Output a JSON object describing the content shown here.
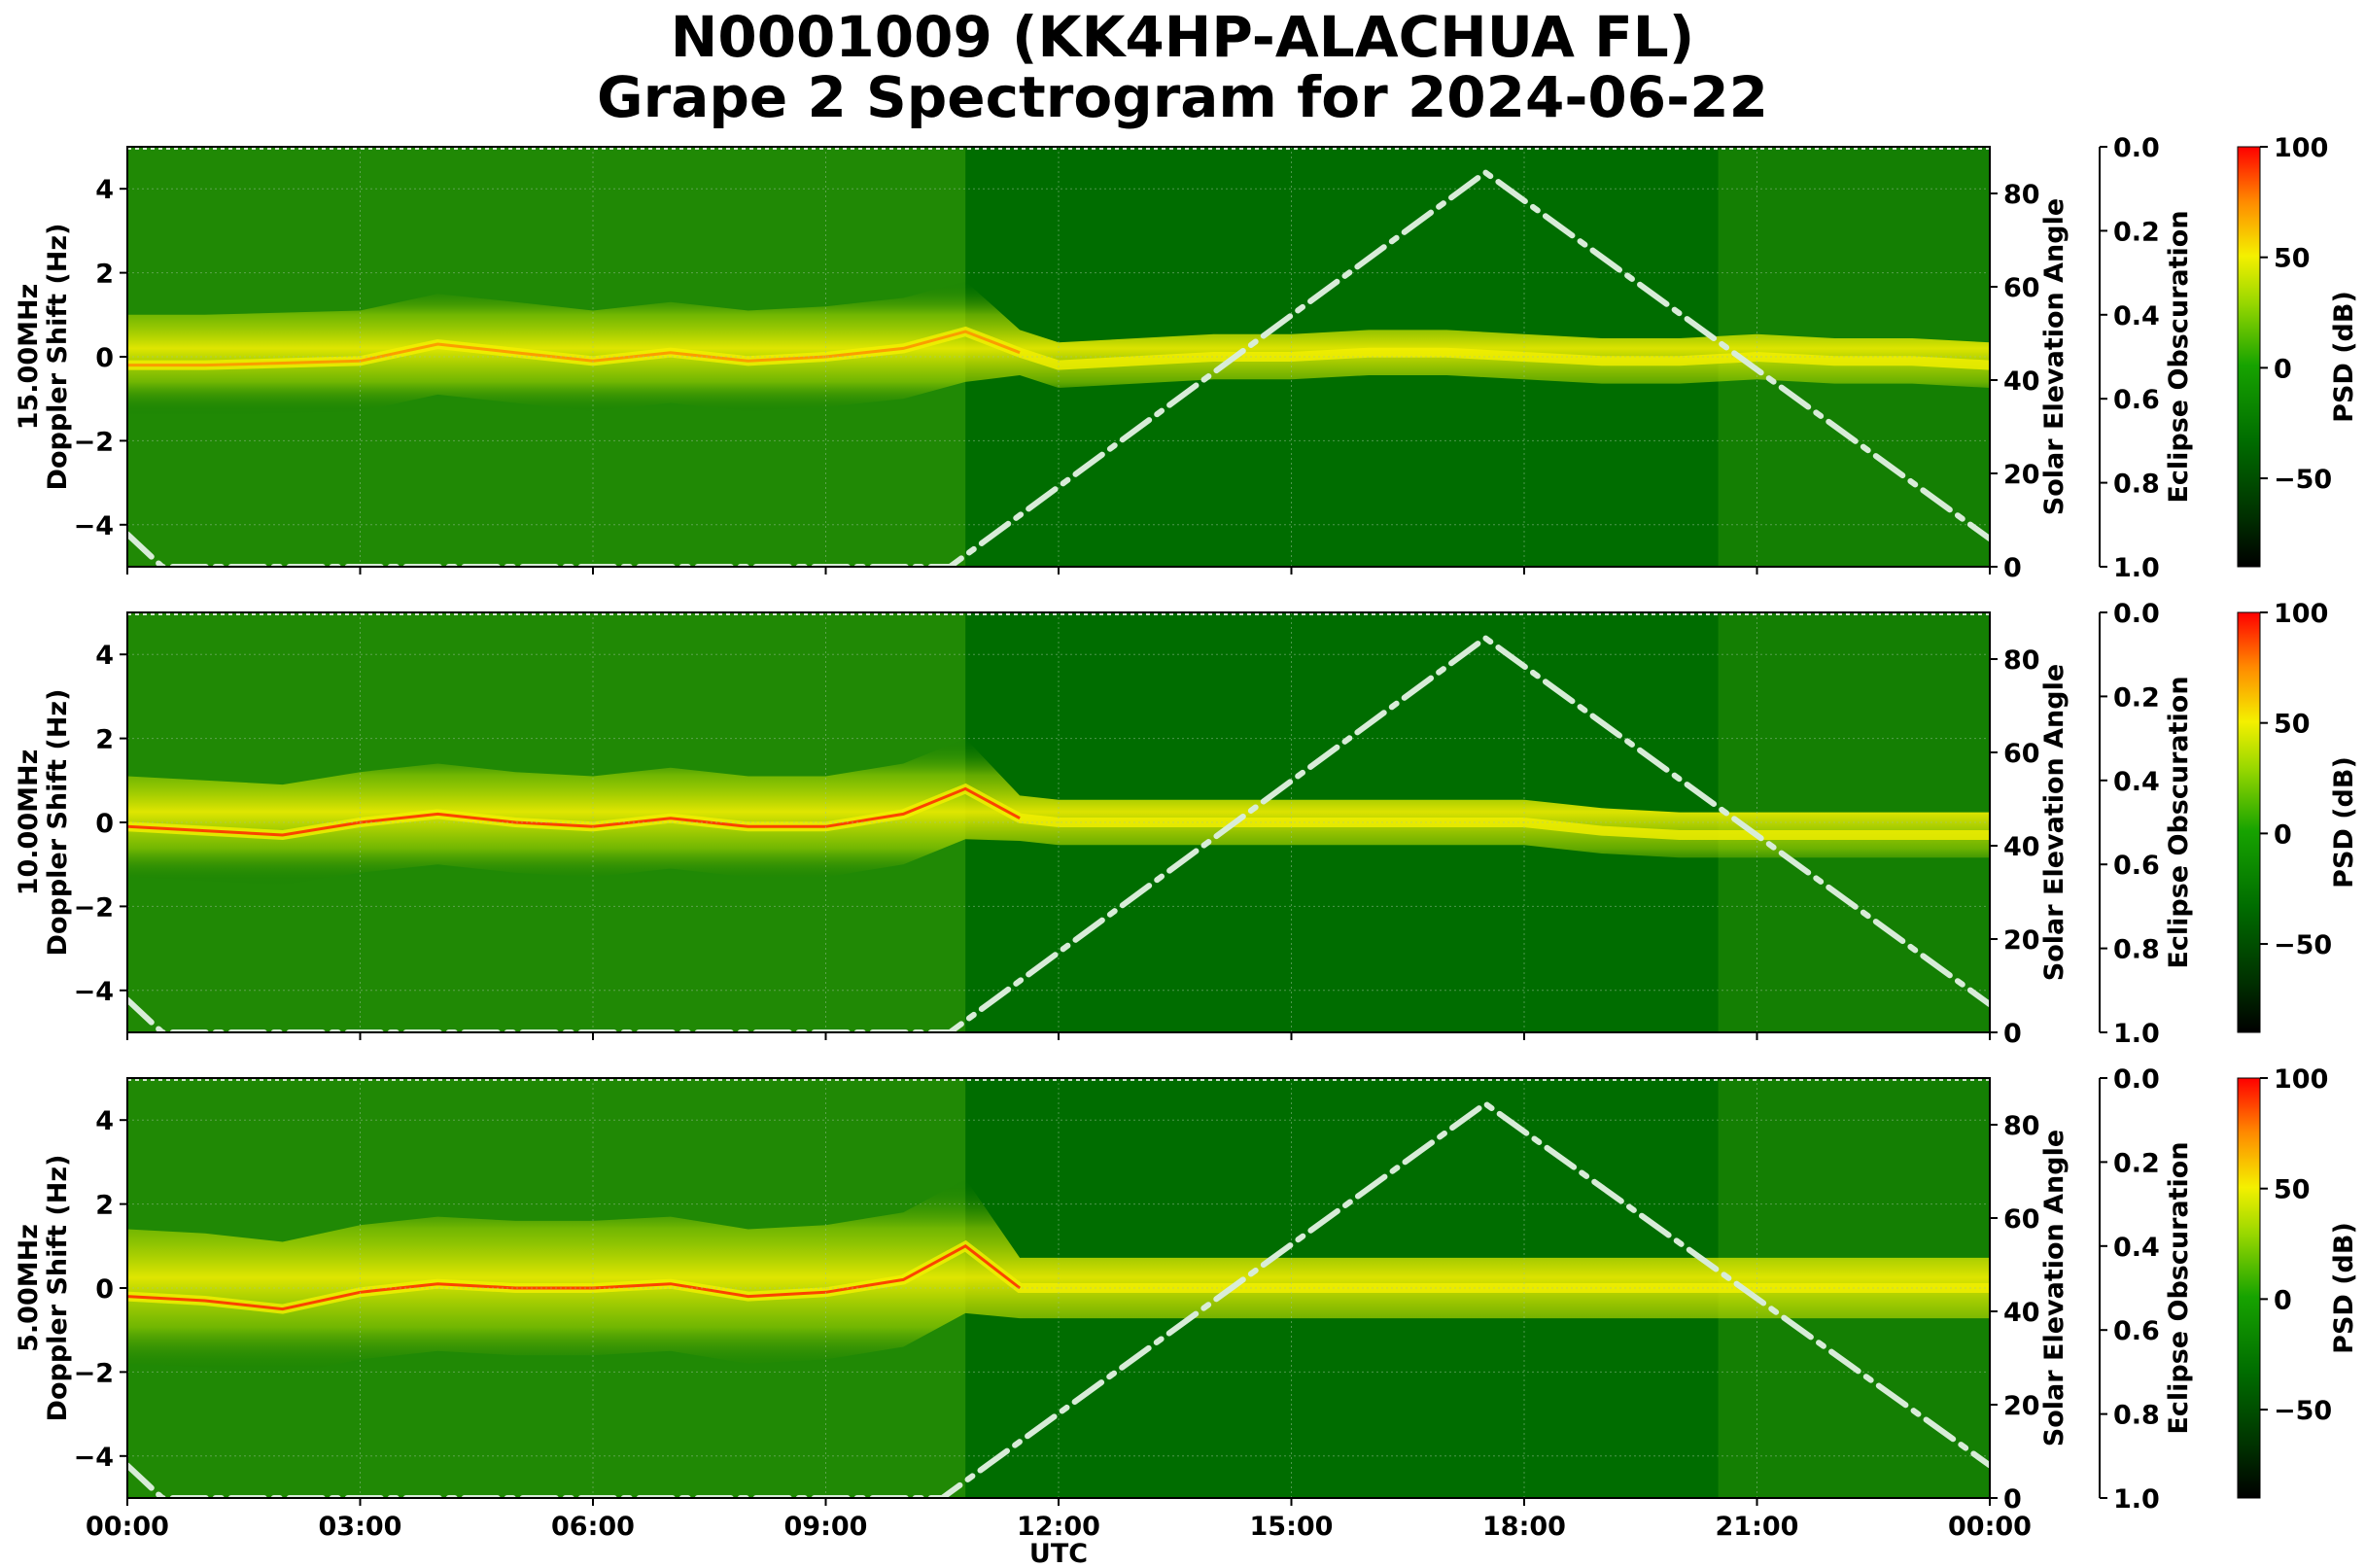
{
  "figure": {
    "title_line1": "N0001009 (KK4HP-ALACHUA FL)",
    "title_line2": "Grape 2 Spectrogram for 2024-06-22",
    "xlabel": "UTC",
    "x_tick_labels": [
      "00:00",
      "03:00",
      "06:00",
      "09:00",
      "12:00",
      "15:00",
      "18:00",
      "21:00",
      "00:00"
    ]
  },
  "colors": {
    "background_green": "#006d00",
    "grass_green": "#3aa10a",
    "yellow_green": "#b4dc00",
    "yellow": "#f4f000",
    "orange": "#ff8a00",
    "red": "#ff1a00",
    "solar_line": "#d8ecd8",
    "grid": "#9bbf9b"
  },
  "colorbar": {
    "label": "PSD (dB)",
    "ticks": [
      "100",
      "50",
      "0",
      "−50"
    ],
    "tick_values": [
      100,
      50,
      0,
      -50
    ],
    "range": [
      -90,
      100
    ]
  },
  "chart_data": [
    {
      "type": "heatmap",
      "ylabel_line1": "15.00MHz",
      "ylabel_line2": "Doppler Shift (Hz)",
      "y_ticks": [
        "4",
        "2",
        "0",
        "−2",
        "−4"
      ],
      "y_tick_values": [
        4,
        2,
        0,
        -2,
        -4
      ],
      "ylim": [
        -5,
        5
      ],
      "xlim_hours": [
        0,
        24
      ],
      "right_axis_label": "Solar Elevation Angle",
      "right_ticks": [
        "80",
        "60",
        "40",
        "20",
        "0"
      ],
      "right_tick_values": [
        80,
        60,
        40,
        20,
        0
      ],
      "right_ylim": [
        0,
        90
      ],
      "eclipse_label": "Eclipse Obscuration",
      "eclipse_ticks": [
        "0.0",
        "0.2",
        "0.4",
        "0.6",
        "0.8",
        "1.0"
      ],
      "eclipse_tick_values": [
        0.0,
        0.2,
        0.4,
        0.6,
        0.8,
        1.0
      ],
      "eclipse_ylim": [
        1.0,
        0.0
      ],
      "solar_elevation": {
        "x_hours": [
          0,
          0.45,
          10.6,
          17.5,
          24
        ],
        "deg": [
          7,
          0,
          0,
          84.5,
          6
        ]
      },
      "doppler_trace": {
        "x_hours": [
          0,
          1,
          2,
          3,
          4,
          5,
          6,
          7,
          8,
          9,
          10,
          10.8,
          11.5,
          12,
          13,
          14,
          15,
          16,
          17,
          18,
          19,
          20,
          21,
          22,
          23,
          24
        ],
        "hz": [
          -0.2,
          -0.2,
          -0.15,
          -0.1,
          0.3,
          0.1,
          -0.1,
          0.1,
          -0.1,
          0.0,
          0.2,
          0.6,
          0.1,
          -0.2,
          -0.1,
          0.0,
          0.0,
          0.1,
          0.1,
          0.0,
          -0.1,
          -0.1,
          0.0,
          -0.1,
          -0.1,
          -0.2
        ]
      }
    },
    {
      "type": "heatmap",
      "ylabel_line1": "10.00MHz",
      "ylabel_line2": "Doppler Shift (Hz)",
      "y_ticks": [
        "4",
        "2",
        "0",
        "−2",
        "−4"
      ],
      "y_tick_values": [
        4,
        2,
        0,
        -2,
        -4
      ],
      "ylim": [
        -5,
        5
      ],
      "xlim_hours": [
        0,
        24
      ],
      "right_axis_label": "Solar Elevation Angle",
      "right_ticks": [
        "80",
        "60",
        "40",
        "20",
        "0"
      ],
      "right_tick_values": [
        80,
        60,
        40,
        20,
        0
      ],
      "right_ylim": [
        0,
        90
      ],
      "eclipse_label": "Eclipse Obscuration",
      "eclipse_ticks": [
        "0.0",
        "0.2",
        "0.4",
        "0.6",
        "0.8",
        "1.0"
      ],
      "eclipse_tick_values": [
        0.0,
        0.2,
        0.4,
        0.6,
        0.8,
        1.0
      ],
      "eclipse_ylim": [
        1.0,
        0.0
      ],
      "solar_elevation": {
        "x_hours": [
          0,
          0.45,
          10.6,
          17.5,
          24
        ],
        "deg": [
          7,
          0,
          0,
          84.5,
          6
        ]
      },
      "doppler_trace": {
        "x_hours": [
          0,
          1,
          2,
          3,
          4,
          5,
          6,
          7,
          8,
          9,
          10,
          10.8,
          11.5,
          12,
          13,
          14,
          15,
          16,
          17,
          18,
          19,
          20,
          21,
          22,
          23,
          24
        ],
        "hz": [
          -0.1,
          -0.2,
          -0.3,
          0.0,
          0.2,
          0.0,
          -0.1,
          0.1,
          -0.1,
          -0.1,
          0.2,
          0.8,
          0.1,
          0.0,
          0.0,
          0.0,
          0.0,
          0.0,
          0.0,
          0.0,
          -0.2,
          -0.3,
          -0.3,
          -0.3,
          -0.3,
          -0.3
        ]
      }
    },
    {
      "type": "heatmap",
      "ylabel_line1": "5.00MHz",
      "ylabel_line2": "Doppler Shift (Hz)",
      "y_ticks": [
        "4",
        "2",
        "0",
        "−2",
        "−4"
      ],
      "y_tick_values": [
        4,
        2,
        0,
        -2,
        -4
      ],
      "ylim": [
        -5,
        5
      ],
      "xlim_hours": [
        0,
        24
      ],
      "right_axis_label": "Solar Elevation Angle",
      "right_ticks": [
        "80",
        "60",
        "40",
        "20",
        "0"
      ],
      "right_tick_values": [
        80,
        60,
        40,
        20,
        0
      ],
      "right_ylim": [
        0,
        90
      ],
      "eclipse_label": "Eclipse Obscuration",
      "eclipse_ticks": [
        "0.0",
        "0.2",
        "0.4",
        "0.6",
        "0.8",
        "1.0"
      ],
      "eclipse_tick_values": [
        0.0,
        0.2,
        0.4,
        0.6,
        0.8,
        1.0
      ],
      "eclipse_ylim": [
        1.0,
        0.0
      ],
      "solar_elevation": {
        "x_hours": [
          0,
          0.45,
          10.5,
          17.5,
          24
        ],
        "deg": [
          7,
          0,
          0,
          84.5,
          7
        ]
      },
      "doppler_trace": {
        "x_hours": [
          0,
          1,
          2,
          3,
          4,
          5,
          6,
          7,
          8,
          9,
          10,
          10.8,
          11.5,
          12,
          13,
          14,
          15,
          16,
          17,
          18,
          19,
          20,
          21,
          22,
          23,
          24
        ],
        "hz": [
          -0.2,
          -0.3,
          -0.5,
          -0.1,
          0.1,
          0.0,
          0.0,
          0.1,
          -0.2,
          -0.1,
          0.2,
          1.0,
          0.0,
          0.0,
          0.0,
          0.0,
          0.0,
          0.0,
          0.0,
          0.0,
          0.0,
          0.0,
          0.0,
          0.0,
          0.0,
          0.0
        ]
      }
    }
  ]
}
